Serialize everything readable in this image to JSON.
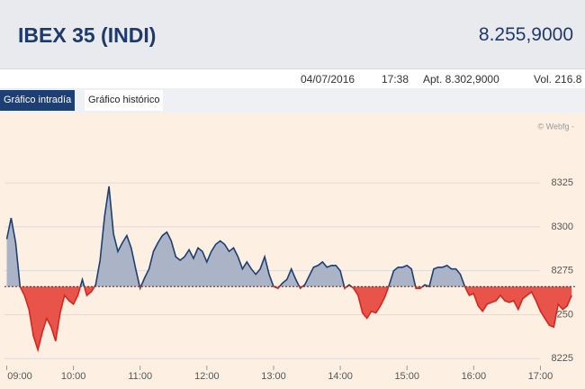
{
  "header": {
    "title": "IBEX 35 (INDI)",
    "value": "8.255,9000"
  },
  "info": {
    "date": "04/07/2016",
    "time": "17:38",
    "apt": "Apt. 8.302,9000",
    "vol": "Vol. 216.8"
  },
  "tabs": [
    "Gráfico intradía",
    "Gráfico histórico"
  ],
  "chart_data": {
    "type": "area",
    "watermark": "© Webfg -",
    "reference": 8266,
    "above_color": "#1d3f73",
    "above_fill": "#aab4c6",
    "below_color": "#d7261e",
    "below_fill": "#e8544a",
    "grid": true,
    "xlim": [
      "08:58",
      "17:32"
    ],
    "xticks": [
      "09:00",
      "10:00",
      "11:00",
      "12:00",
      "13:00",
      "14:00",
      "15:00",
      "16:00",
      "17:00"
    ],
    "ylim": [
      8219,
      8365
    ],
    "yticks": [
      8225,
      8250,
      8275,
      8300,
      8325
    ],
    "x": [
      "09:00",
      "09:04",
      "09:08",
      "09:12",
      "09:16",
      "09:20",
      "09:24",
      "09:28",
      "09:32",
      "09:36",
      "09:40",
      "09:44",
      "09:48",
      "09:52",
      "09:56",
      "10:00",
      "10:04",
      "10:08",
      "10:12",
      "10:16",
      "10:20",
      "10:24",
      "10:28",
      "10:32",
      "10:36",
      "10:40",
      "10:44",
      "10:48",
      "10:52",
      "10:56",
      "11:00",
      "11:04",
      "11:08",
      "11:12",
      "11:16",
      "11:20",
      "11:24",
      "11:28",
      "11:32",
      "11:36",
      "11:40",
      "11:44",
      "11:48",
      "11:52",
      "11:56",
      "12:00",
      "12:04",
      "12:08",
      "12:12",
      "12:16",
      "12:20",
      "12:24",
      "12:28",
      "12:32",
      "12:36",
      "12:40",
      "12:44",
      "12:48",
      "12:52",
      "12:56",
      "13:00",
      "13:04",
      "13:08",
      "13:12",
      "13:16",
      "13:20",
      "13:24",
      "13:28",
      "13:32",
      "13:36",
      "13:40",
      "13:44",
      "13:48",
      "13:52",
      "13:56",
      "14:00",
      "14:04",
      "14:08",
      "14:12",
      "14:16",
      "14:20",
      "14:24",
      "14:28",
      "14:32",
      "14:36",
      "14:40",
      "14:44",
      "14:48",
      "14:52",
      "14:56",
      "15:00",
      "15:04",
      "15:08",
      "15:12",
      "15:16",
      "15:20",
      "15:24",
      "15:28",
      "15:32",
      "15:36",
      "15:40",
      "15:44",
      "15:48",
      "15:52",
      "15:56",
      "16:00",
      "16:04",
      "16:08",
      "16:12",
      "16:16",
      "16:20",
      "16:24",
      "16:28",
      "16:32",
      "16:36",
      "16:40",
      "16:44",
      "16:48",
      "16:52",
      "16:56",
      "17:00",
      "17:04",
      "17:08",
      "17:12",
      "17:16",
      "17:20",
      "17:24",
      "17:28"
    ],
    "values": [
      8293,
      8305,
      8291,
      8266,
      8261,
      8253,
      8238,
      8230,
      8240,
      8248,
      8243,
      8235,
      8251,
      8261,
      8258,
      8256,
      8261,
      8270,
      8261,
      8263,
      8267,
      8281,
      8306,
      8323,
      8296,
      8286,
      8291,
      8295,
      8288,
      8276,
      8265,
      8271,
      8276,
      8286,
      8291,
      8295,
      8297,
      8292,
      8283,
      8281,
      8283,
      8287,
      8282,
      8288,
      8286,
      8280,
      8286,
      8290,
      8292,
      8290,
      8286,
      8288,
      8283,
      8276,
      8280,
      8276,
      8273,
      8276,
      8283,
      8273,
      8266,
      8265,
      8268,
      8270,
      8276,
      8270,
      8265,
      8267,
      8272,
      8277,
      8278,
      8280,
      8277,
      8278,
      8278,
      8275,
      8265,
      8267,
      8265,
      8261,
      8251,
      8248,
      8252,
      8251,
      8255,
      8260,
      8267,
      8275,
      8277,
      8277,
      8278,
      8276,
      8265,
      8265,
      8267,
      8266,
      8276,
      8277,
      8277,
      8278,
      8276,
      8276,
      8273,
      8266,
      8261,
      8262,
      8255,
      8252,
      8256,
      8257,
      8258,
      8261,
      8258,
      8257,
      8258,
      8253,
      8259,
      8261,
      8263,
      8258,
      8252,
      8248,
      8244,
      8243,
      8256,
      8253,
      8255,
      8261
    ]
  }
}
